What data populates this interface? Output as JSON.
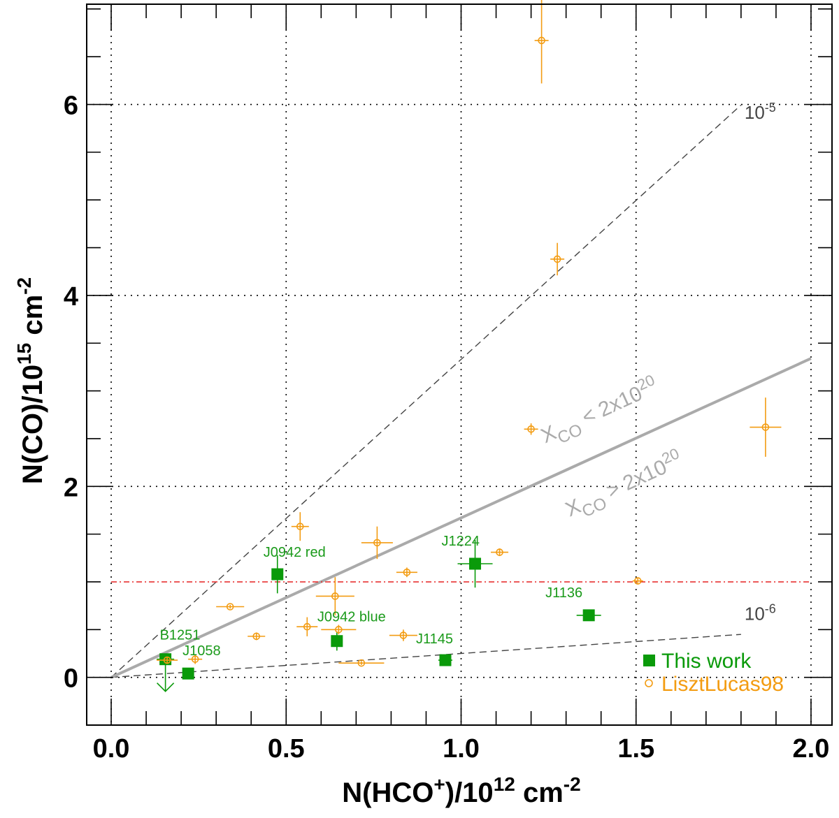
{
  "chart_data": {
    "type": "scatter",
    "xlabel": "N(HCO⁺)/10¹² cm⁻²",
    "ylabel": "N(CO)/10¹⁵ cm⁻²",
    "xlim": [
      -0.07,
      2.06
    ],
    "ylim": [
      -0.5,
      7.05
    ],
    "xticks": [
      0.0,
      0.5,
      1.0,
      1.5,
      2.0
    ],
    "xtick_labels": [
      "0.0",
      "0.5",
      "1.0",
      "1.5",
      "2.0"
    ],
    "yticks": [
      0,
      2,
      4,
      6
    ],
    "ytick_labels": [
      "0",
      "2",
      "4",
      "6"
    ],
    "grid": true,
    "legend_position": "bottom-right",
    "series": [
      {
        "name": "This work",
        "color": "#0a9a0a",
        "marker": "square",
        "points": [
          {
            "label": "B1251",
            "x": 0.155,
            "y": 0.19,
            "xerr": 0.025,
            "yerr": 0.05,
            "upper_limit": true
          },
          {
            "label": "J1058",
            "x": 0.22,
            "y": 0.04,
            "xerr": 0.0,
            "yerr": 0.0
          },
          {
            "label": "J0942 red",
            "x": 0.475,
            "y": 1.08,
            "xerr": 0.0,
            "yerr": 0.2
          },
          {
            "label": "J0942 blue",
            "x": 0.645,
            "y": 0.38,
            "xerr": 0.0,
            "yerr": 0.1
          },
          {
            "label": "J1145",
            "x": 0.955,
            "y": 0.18,
            "xerr": 0.02,
            "yerr": 0.0
          },
          {
            "label": "J1224",
            "x": 1.04,
            "y": 1.19,
            "xerr": 0.05,
            "yerr": 0.25
          },
          {
            "label": "J1136",
            "x": 1.365,
            "y": 0.65,
            "xerr": 0.035,
            "yerr": 0.0
          }
        ]
      },
      {
        "name": "LisztLucas98",
        "color": "#f39c12",
        "marker": "open-circle",
        "points": [
          {
            "x": 0.16,
            "y": 0.18,
            "xerr": 0.03,
            "yerr": 0.03
          },
          {
            "x": 0.24,
            "y": 0.19,
            "xerr": 0.02,
            "yerr": 0.05
          },
          {
            "x": 0.34,
            "y": 0.74,
            "xerr": 0.04,
            "yerr": 0.02
          },
          {
            "x": 0.415,
            "y": 0.43,
            "xerr": 0.025,
            "yerr": 0.04
          },
          {
            "x": 0.56,
            "y": 0.53,
            "xerr": 0.03,
            "yerr": 0.1
          },
          {
            "x": 0.54,
            "y": 1.58,
            "xerr": 0.025,
            "yerr": 0.15
          },
          {
            "x": 0.64,
            "y": 0.85,
            "xerr": 0.055,
            "yerr": 0.2
          },
          {
            "x": 0.65,
            "y": 0.5,
            "xerr": 0.05,
            "yerr": 0.05
          },
          {
            "x": 0.715,
            "y": 0.15,
            "xerr": 0.065,
            "yerr": 0.02
          },
          {
            "x": 0.76,
            "y": 1.41,
            "xerr": 0.045,
            "yerr": 0.17
          },
          {
            "x": 0.835,
            "y": 0.44,
            "xerr": 0.04,
            "yerr": 0.06
          },
          {
            "x": 0.845,
            "y": 1.1,
            "xerr": 0.03,
            "yerr": 0.05
          },
          {
            "x": 1.11,
            "y": 1.31,
            "xerr": 0.025,
            "yerr": 0.04
          },
          {
            "x": 1.2,
            "y": 2.6,
            "xerr": 0.02,
            "yerr": 0.06
          },
          {
            "x": 1.275,
            "y": 4.38,
            "xerr": 0.02,
            "yerr": 0.17
          },
          {
            "x": 1.23,
            "y": 6.67,
            "xerr": 0.02,
            "yerr": 0.45
          },
          {
            "x": 1.505,
            "y": 1.01,
            "xerr": 0.015,
            "yerr": 0.03
          },
          {
            "x": 1.87,
            "y": 2.62,
            "xerr": 0.045,
            "yerr": 0.31
          }
        ]
      }
    ],
    "lines": [
      {
        "name": "10-5",
        "label_base": "10",
        "label_exp": "-5",
        "slope": 3.33,
        "style": "dashed",
        "color": "#444444",
        "x_end": 1.8,
        "label_x": 1.81,
        "label_y": 5.85
      },
      {
        "name": "10-6",
        "label_base": "10",
        "label_exp": "-6",
        "slope": 0.25,
        "style": "dashed",
        "color": "#444444",
        "x_end": 1.8,
        "label_x": 1.81,
        "label_y": 0.6
      },
      {
        "name": "XCO = 2x10^20",
        "slope": 1.67,
        "style": "solid",
        "color": "#aaaaaa",
        "x_end": 2.0
      }
    ],
    "hline": {
      "y": 1.0,
      "style": "dash-dot",
      "color": "#e52222"
    },
    "annotations": {
      "xco_upper": {
        "main": "X",
        "sub": "CO",
        "rel": " < 2x10",
        "exp": "20"
      },
      "xco_lower": {
        "main": "X",
        "sub": "CO",
        "rel": " > 2x10",
        "exp": "20"
      }
    },
    "legend": [
      {
        "text": "This work",
        "color": "#0a9a0a",
        "marker": "square"
      },
      {
        "text": "LisztLucas98",
        "color": "#f39c12",
        "marker": "open-circle"
      }
    ]
  },
  "axis_titles": {
    "x": {
      "base": "N(HCO",
      "sup1": "+",
      "mid": ")/10",
      "sup2": "12",
      "tail": " cm",
      "sup3": "-2"
    },
    "y": {
      "base": "N(CO)/10",
      "sup1": "15",
      "tail": " cm",
      "sup2": "-2"
    }
  }
}
